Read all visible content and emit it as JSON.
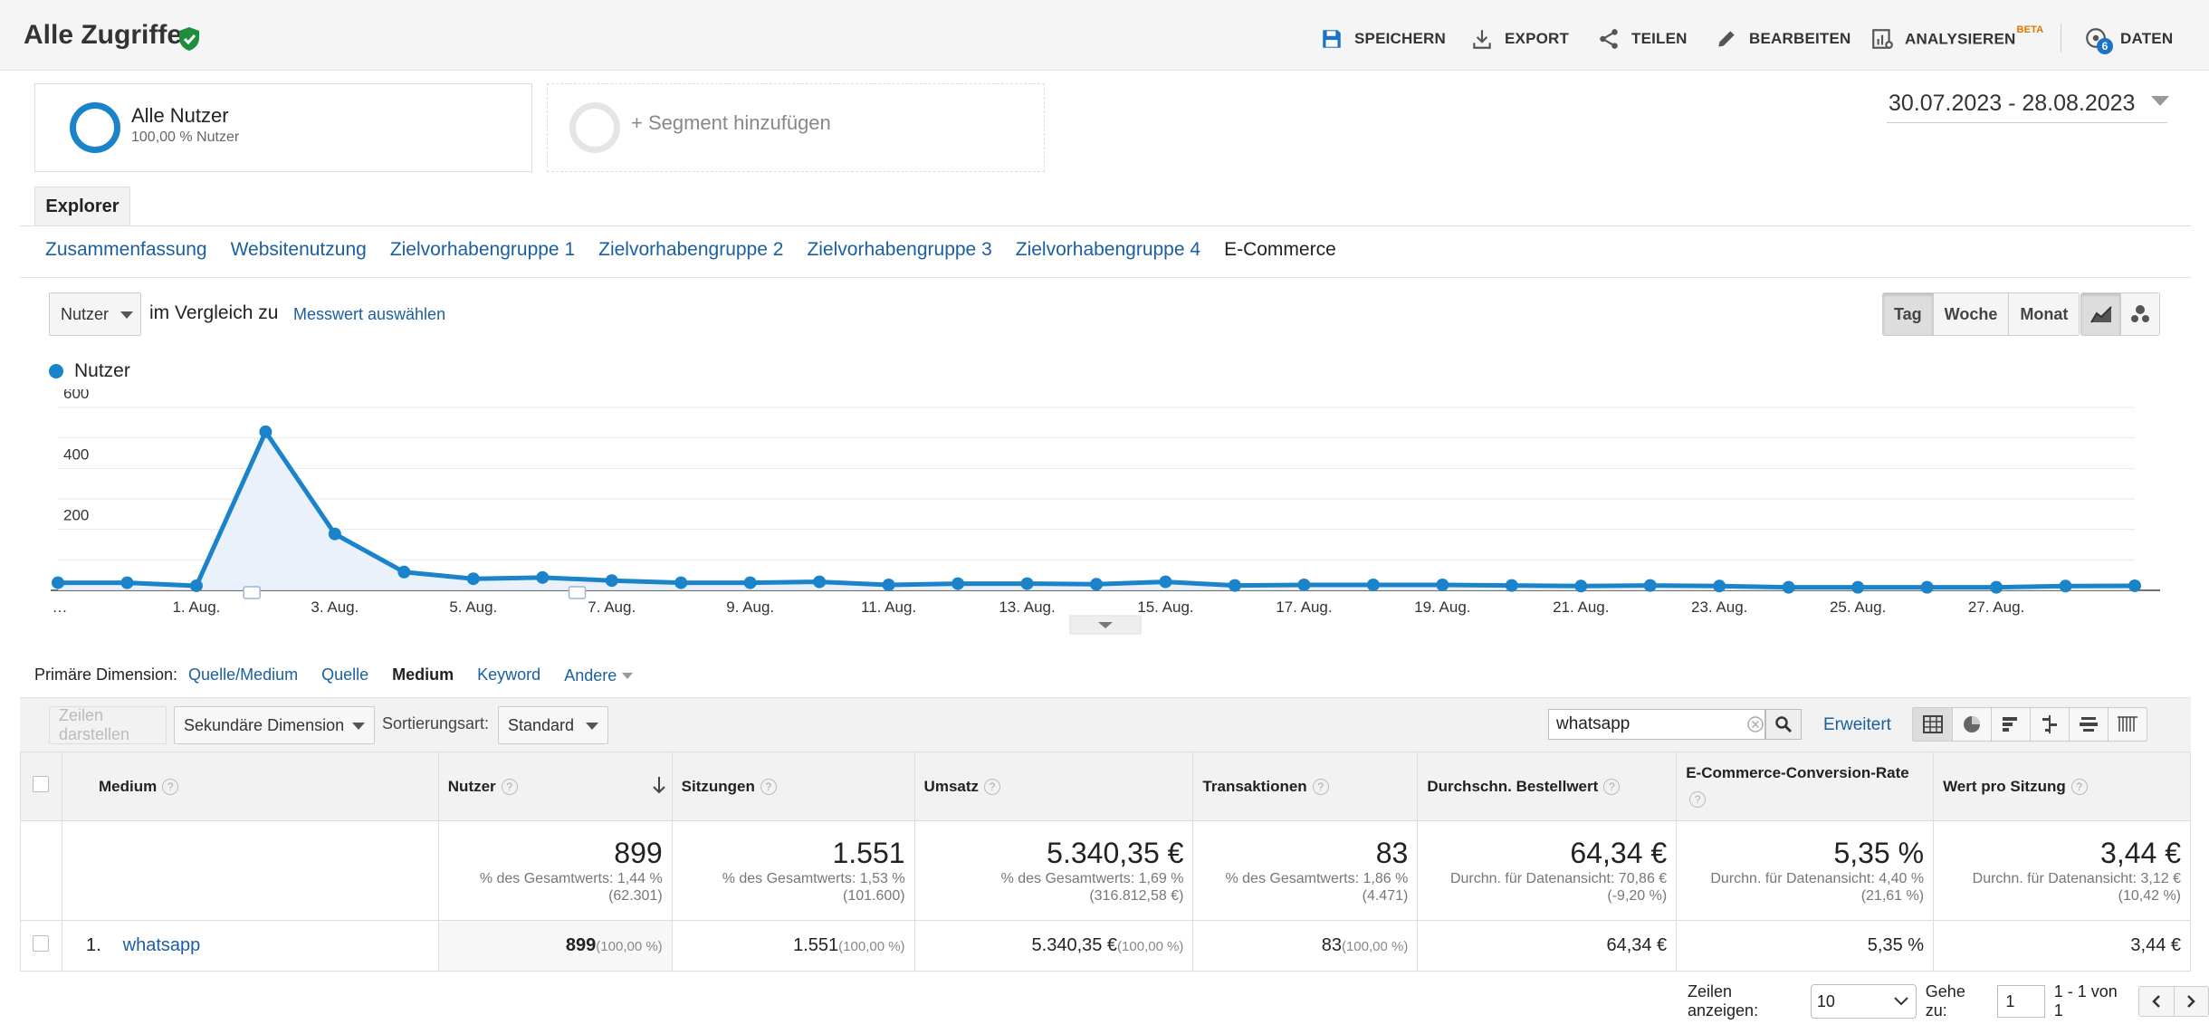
{
  "header": {
    "title": "Alle Zugriffe",
    "save": "SPEICHERN",
    "export": "EXPORT",
    "share": "TEILEN",
    "edit": "BEARBEITEN",
    "analyze": "ANALYSIEREN",
    "analyze_badge": "BETA",
    "data": "DATEN",
    "data_badge": "6"
  },
  "segments": {
    "active_name": "Alle Nutzer",
    "active_sub": "100,00 % Nutzer",
    "add_label": "+ Segment hinzufügen"
  },
  "date_range": "30.07.2023 - 28.08.2023",
  "explorer_tab": "Explorer",
  "subnav": [
    "Zusammenfassung",
    "Websitenutzung",
    "Zielvorhabengruppe 1",
    "Zielvorhabengruppe 2",
    "Zielvorhabengruppe 3",
    "Zielvorhabengruppe 4",
    "E-Commerce"
  ],
  "chart_controls": {
    "metric": "Nutzer",
    "compare_text": "im Vergleich zu",
    "metric_link": "Messwert auswählen",
    "periods": [
      "Tag",
      "Woche",
      "Monat"
    ]
  },
  "chart_data": {
    "type": "area",
    "series": [
      {
        "name": "Nutzer",
        "color": "#1a83c9",
        "values": [
          25,
          25,
          15,
          520,
          185,
          60,
          38,
          42,
          32,
          25,
          25,
          28,
          18,
          22,
          22,
          20,
          28,
          16,
          18,
          18,
          18,
          16,
          14,
          16,
          14,
          10,
          10,
          10,
          10,
          14,
          15
        ]
      }
    ],
    "x_tick_labels": [
      "…",
      "1. Aug.",
      "3. Aug.",
      "5. Aug.",
      "7. Aug.",
      "9. Aug.",
      "11. Aug.",
      "13. Aug.",
      "15. Aug.",
      "17. Aug.",
      "19. Aug.",
      "21. Aug.",
      "23. Aug.",
      "25. Aug.",
      "27. Aug."
    ],
    "y_ticks": [
      200,
      400,
      600
    ],
    "ylim": [
      0,
      600
    ],
    "grid": true
  },
  "dimensions": {
    "label": "Primäre Dimension:",
    "items": [
      "Quelle/Medium",
      "Quelle",
      "Medium",
      "Keyword",
      "Andere"
    ],
    "active": "Medium"
  },
  "toolbar": {
    "rows_btn": "Zeilen darstellen",
    "secondary_dim": "Sekundäre Dimension",
    "sort_label": "Sortierungsart:",
    "sort_value": "Standard",
    "search_value": "whatsapp",
    "advanced": "Erweitert"
  },
  "table": {
    "columns": [
      "Medium",
      "Nutzer",
      "Sitzungen",
      "Umsatz",
      "Transaktionen",
      "Durchschn. Bestellwert",
      "E-Commerce-Conversion-Rate",
      "Wert pro Sitzung"
    ],
    "totals": [
      {
        "value": "899",
        "sub": "% des Gesamtwerts: 1,44 % (62.301)"
      },
      {
        "value": "1.551",
        "sub": "% des Gesamtwerts: 1,53 % (101.600)"
      },
      {
        "value": "5.340,35 €",
        "sub": "% des Gesamtwerts: 1,69 % (316.812,58 €)"
      },
      {
        "value": "83",
        "sub": "% des Gesamtwerts: 1,86 % (4.471)"
      },
      {
        "value": "64,34 €",
        "sub": "Durchn. für Datenansicht: 70,86 € (-9,20 %)"
      },
      {
        "value": "5,35 %",
        "sub": "Durchn. für Datenansicht: 4,40 % (21,61 %)"
      },
      {
        "value": "3,44 €",
        "sub": "Durchn. für Datenansicht: 3,12 € (10,42 %)"
      }
    ],
    "rows": [
      {
        "index": "1.",
        "medium": "whatsapp",
        "users": "899",
        "users_pct": "(100,00 %)",
        "sessions": "1.551",
        "sessions_pct": "(100,00 %)",
        "revenue": "5.340,35 €",
        "revenue_pct": "(100,00 %)",
        "transactions": "83",
        "transactions_pct": "(100,00 %)",
        "avg_order": "64,34 €",
        "conv_rate": "5,35 %",
        "value_per_session": "3,44 €"
      }
    ]
  },
  "pagination": {
    "rows_label": "Zeilen anzeigen:",
    "rows_value": "10",
    "goto_label": "Gehe zu:",
    "goto_value": "1",
    "range": "1 - 1 von 1"
  }
}
